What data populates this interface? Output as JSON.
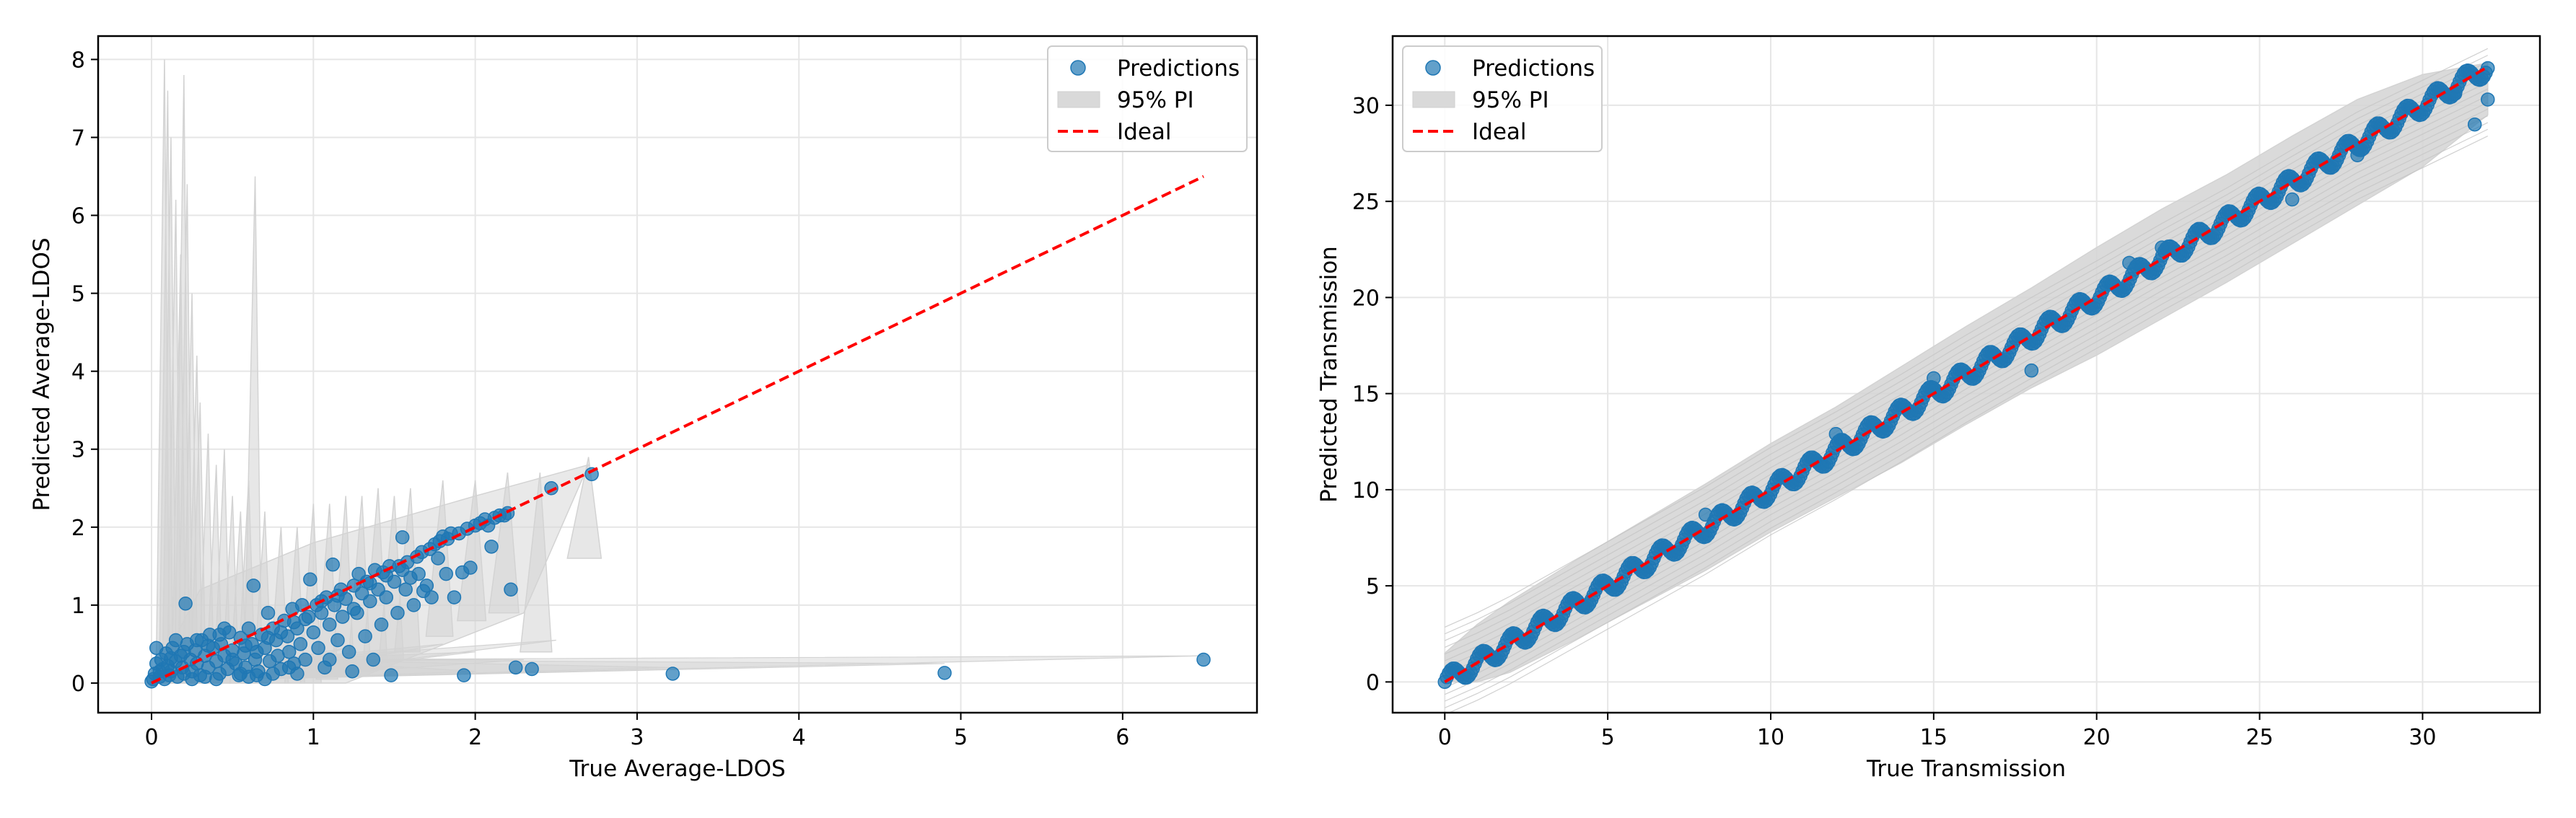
{
  "chart_data": [
    {
      "type": "scatter",
      "xlabel": "True Average-LDOS",
      "ylabel": "Predicted Average-LDOS",
      "xlim": [
        -0.33,
        6.83
      ],
      "ylim": [
        -0.38,
        8.3
      ],
      "xticks": [
        0,
        1,
        2,
        3,
        4,
        5,
        6
      ],
      "yticks": [
        0,
        1,
        2,
        3,
        4,
        5,
        6,
        7,
        8
      ],
      "grid": true,
      "legend": {
        "position": "top-right",
        "entries": [
          "Predictions",
          "95% PI",
          "Ideal"
        ]
      },
      "colors": {
        "points": "#1f77b4",
        "interval": "#d3d3d3",
        "ideal": "#ff0000"
      },
      "ideal_line": {
        "from": [
          0,
          0
        ],
        "to": [
          6.5,
          6.5
        ]
      },
      "points": [
        [
          0.0,
          0.02
        ],
        [
          0.01,
          0.05
        ],
        [
          0.02,
          0.12
        ],
        [
          0.03,
          0.25
        ],
        [
          0.03,
          0.45
        ],
        [
          0.05,
          0.08
        ],
        [
          0.06,
          0.3
        ],
        [
          0.07,
          0.18
        ],
        [
          0.08,
          0.05
        ],
        [
          0.09,
          0.38
        ],
        [
          0.1,
          0.22
        ],
        [
          0.11,
          0.1
        ],
        [
          0.12,
          0.15
        ],
        [
          0.13,
          0.45
        ],
        [
          0.15,
          0.28
        ],
        [
          0.16,
          0.08
        ],
        [
          0.18,
          0.35
        ],
        [
          0.19,
          0.2
        ],
        [
          0.2,
          0.12
        ],
        [
          0.21,
          1.02
        ],
        [
          0.22,
          0.5
        ],
        [
          0.24,
          0.3
        ],
        [
          0.25,
          0.15
        ],
        [
          0.27,
          0.42
        ],
        [
          0.28,
          0.25
        ],
        [
          0.3,
          0.1
        ],
        [
          0.31,
          0.55
        ],
        [
          0.33,
          0.35
        ],
        [
          0.35,
          0.2
        ],
        [
          0.36,
          0.62
        ],
        [
          0.38,
          0.45
        ],
        [
          0.4,
          0.28
        ],
        [
          0.42,
          0.12
        ],
        [
          0.43,
          0.5
        ],
        [
          0.45,
          0.35
        ],
        [
          0.47,
          0.18
        ],
        [
          0.48,
          0.65
        ],
        [
          0.5,
          0.42
        ],
        [
          0.52,
          0.25
        ],
        [
          0.54,
          0.1
        ],
        [
          0.55,
          0.58
        ],
        [
          0.57,
          0.38
        ],
        [
          0.58,
          0.2
        ],
        [
          0.6,
          0.7
        ],
        [
          0.62,
          0.5
        ],
        [
          0.63,
          1.25
        ],
        [
          0.64,
          0.3
        ],
        [
          0.66,
          0.15
        ],
        [
          0.68,
          0.62
        ],
        [
          0.7,
          0.45
        ],
        [
          0.72,
          0.9
        ],
        [
          0.73,
          0.28
        ],
        [
          0.75,
          0.7
        ],
        [
          0.77,
          0.55
        ],
        [
          0.78,
          0.35
        ],
        [
          0.8,
          0.18
        ],
        [
          0.82,
          0.8
        ],
        [
          0.84,
          0.6
        ],
        [
          0.85,
          0.4
        ],
        [
          0.87,
          0.95
        ],
        [
          0.88,
          0.25
        ],
        [
          0.9,
          0.7
        ],
        [
          0.92,
          0.5
        ],
        [
          0.93,
          1.0
        ],
        [
          0.95,
          0.3
        ],
        [
          0.97,
          0.85
        ],
        [
          0.98,
          1.33
        ],
        [
          1.0,
          0.65
        ],
        [
          1.02,
          1.0
        ],
        [
          1.03,
          0.45
        ],
        [
          1.05,
          0.9
        ],
        [
          1.07,
          0.2
        ],
        [
          1.08,
          1.1
        ],
        [
          1.1,
          0.75
        ],
        [
          1.12,
          1.52
        ],
        [
          1.13,
          1.0
        ],
        [
          1.15,
          0.55
        ],
        [
          1.17,
          1.2
        ],
        [
          1.18,
          0.85
        ],
        [
          1.2,
          1.08
        ],
        [
          1.22,
          0.4
        ],
        [
          1.24,
          0.15
        ],
        [
          1.25,
          1.25
        ],
        [
          1.27,
          0.9
        ],
        [
          1.28,
          1.4
        ],
        [
          1.3,
          1.15
        ],
        [
          1.32,
          0.6
        ],
        [
          1.33,
          1.3
        ],
        [
          1.35,
          1.05
        ],
        [
          1.37,
          0.3
        ],
        [
          1.38,
          1.45
        ],
        [
          1.4,
          1.2
        ],
        [
          1.42,
          0.75
        ],
        [
          1.43,
          1.42
        ],
        [
          1.45,
          1.1
        ],
        [
          1.47,
          1.5
        ],
        [
          1.48,
          0.1
        ],
        [
          1.5,
          1.3
        ],
        [
          1.52,
          0.9
        ],
        [
          1.53,
          1.5
        ],
        [
          1.55,
          1.87
        ],
        [
          1.57,
          1.2
        ],
        [
          1.58,
          1.55
        ],
        [
          1.6,
          1.35
        ],
        [
          1.62,
          1.0
        ],
        [
          1.64,
          1.62
        ],
        [
          1.65,
          1.4
        ],
        [
          1.67,
          1.68
        ],
        [
          1.68,
          1.18
        ],
        [
          1.7,
          1.25
        ],
        [
          1.72,
          1.72
        ],
        [
          1.73,
          1.1
        ],
        [
          1.75,
          1.78
        ],
        [
          1.77,
          1.6
        ],
        [
          1.78,
          1.82
        ],
        [
          1.8,
          1.88
        ],
        [
          1.82,
          1.4
        ],
        [
          1.83,
          1.85
        ],
        [
          1.85,
          1.92
        ],
        [
          1.87,
          1.1
        ],
        [
          1.9,
          1.92
        ],
        [
          1.92,
          1.42
        ],
        [
          1.93,
          0.1
        ],
        [
          1.95,
          1.98
        ],
        [
          1.97,
          1.48
        ],
        [
          2.0,
          2.02
        ],
        [
          2.03,
          2.05
        ],
        [
          2.06,
          2.1
        ],
        [
          2.08,
          2.02
        ],
        [
          2.1,
          1.75
        ],
        [
          2.12,
          2.12
        ],
        [
          2.15,
          2.15
        ],
        [
          2.18,
          2.15
        ],
        [
          2.2,
          2.18
        ],
        [
          2.22,
          1.2
        ],
        [
          2.25,
          0.2
        ],
        [
          2.35,
          0.18
        ],
        [
          2.47,
          2.5
        ],
        [
          2.72,
          2.68
        ],
        [
          3.22,
          0.12
        ],
        [
          4.9,
          0.13
        ],
        [
          6.5,
          0.3
        ],
        [
          0.05,
          0.15
        ],
        [
          0.12,
          0.32
        ],
        [
          0.2,
          0.4
        ],
        [
          0.28,
          0.55
        ],
        [
          0.35,
          0.48
        ],
        [
          0.42,
          0.62
        ],
        [
          0.5,
          0.3
        ],
        [
          0.58,
          0.48
        ],
        [
          0.65,
          0.4
        ],
        [
          0.72,
          0.58
        ],
        [
          0.8,
          0.65
        ],
        [
          0.88,
          0.78
        ],
        [
          0.95,
          0.82
        ],
        [
          1.05,
          1.05
        ],
        [
          1.15,
          1.12
        ],
        [
          1.25,
          0.95
        ],
        [
          1.35,
          1.28
        ],
        [
          1.45,
          1.38
        ],
        [
          1.55,
          1.45
        ],
        [
          0.4,
          0.05
        ],
        [
          0.6,
          0.08
        ],
        [
          0.7,
          0.05
        ],
        [
          0.9,
          0.12
        ],
        [
          1.1,
          0.3
        ],
        [
          0.15,
          0.55
        ],
        [
          0.25,
          0.05
        ],
        [
          0.33,
          0.08
        ],
        [
          0.45,
          0.7
        ],
        [
          0.55,
          0.12
        ],
        [
          0.65,
          0.1
        ],
        [
          0.75,
          0.12
        ],
        [
          0.85,
          0.2
        ]
      ],
      "intervals": [
        [
          0.08,
          0.0,
          8.0
        ],
        [
          0.1,
          0.0,
          7.6
        ],
        [
          0.12,
          0.0,
          7.0
        ],
        [
          0.15,
          0.0,
          6.2
        ],
        [
          0.18,
          0.0,
          5.5
        ],
        [
          0.2,
          0.0,
          7.8
        ],
        [
          0.22,
          0.0,
          6.4
        ],
        [
          0.25,
          0.0,
          5.0
        ],
        [
          0.28,
          0.0,
          4.2
        ],
        [
          0.3,
          0.0,
          3.6
        ],
        [
          0.35,
          0.0,
          3.2
        ],
        [
          0.4,
          0.0,
          2.8
        ],
        [
          0.45,
          0.0,
          3.0
        ],
        [
          0.5,
          0.0,
          2.4
        ],
        [
          0.55,
          0.0,
          2.2
        ],
        [
          0.6,
          0.0,
          2.6
        ],
        [
          0.64,
          0.0,
          6.5
        ],
        [
          0.7,
          0.0,
          2.2
        ],
        [
          0.8,
          0.0,
          2.0
        ],
        [
          0.9,
          0.0,
          2.0
        ],
        [
          1.0,
          0.0,
          2.3
        ],
        [
          1.1,
          0.05,
          2.3
        ],
        [
          1.2,
          0.1,
          2.4
        ],
        [
          1.3,
          0.15,
          2.4
        ],
        [
          1.4,
          0.3,
          2.5
        ],
        [
          1.5,
          0.3,
          2.4
        ],
        [
          1.6,
          0.4,
          2.5
        ],
        [
          1.8,
          0.6,
          2.6
        ],
        [
          2.0,
          0.8,
          2.6
        ],
        [
          2.2,
          0.9,
          2.7
        ],
        [
          2.4,
          0.4,
          2.7
        ],
        [
          2.7,
          1.6,
          2.9
        ]
      ],
      "spikes": [
        [
          0.5,
          0.1
        ],
        [
          1.0,
          0.25
        ],
        [
          1.5,
          0.3
        ],
        [
          2.0,
          0.4
        ],
        [
          2.5,
          0.55
        ],
        [
          2.0,
          0.15
        ],
        [
          3.2,
          0.2
        ],
        [
          4.9,
          0.25
        ],
        [
          6.5,
          0.35
        ],
        [
          2.3,
          0.3
        ],
        [
          1.8,
          0.5
        ],
        [
          1.2,
          0.45
        ]
      ]
    },
    {
      "type": "scatter",
      "xlabel": "True Transmission",
      "ylabel": "Predicted Transmission",
      "xlim": [
        -1.6,
        33.6
      ],
      "ylim": [
        -1.6,
        33.6
      ],
      "xticks": [
        0,
        5,
        10,
        15,
        20,
        25,
        30
      ],
      "yticks": [
        0,
        5,
        10,
        15,
        20,
        25,
        30
      ],
      "grid": true,
      "legend": {
        "position": "top-left",
        "entries": [
          "Predictions",
          "95% PI",
          "Ideal"
        ]
      },
      "colors": {
        "points": "#1f77b4",
        "interval": "#d3d3d3",
        "ideal": "#ff0000"
      },
      "ideal_line": {
        "from": [
          0,
          0
        ],
        "to": [
          32,
          32
        ]
      },
      "band": {
        "x": [
          0,
          1,
          2,
          4,
          6,
          8,
          10,
          12,
          14,
          16,
          18,
          20,
          22,
          24,
          26,
          28,
          30,
          32
        ],
        "upper": [
          1.5,
          3.0,
          4.2,
          6.3,
          8.3,
          10.3,
          12.4,
          14.3,
          16.4,
          18.5,
          20.5,
          22.6,
          24.6,
          26.4,
          28.4,
          30.3,
          31.6,
          32.2
        ],
        "lower": [
          0,
          0,
          0.5,
          2.2,
          4.0,
          5.8,
          7.8,
          9.6,
          11.4,
          13.4,
          15.3,
          17.0,
          18.9,
          20.8,
          22.8,
          24.8,
          26.8,
          29.5
        ]
      },
      "outliers": [
        [
          31.6,
          29.0
        ],
        [
          32.0,
          30.3
        ],
        [
          21.0,
          21.8
        ],
        [
          18.0,
          16.2
        ],
        [
          12.0,
          12.9
        ],
        [
          26.0,
          25.1
        ],
        [
          28.0,
          27.4
        ],
        [
          22.0,
          22.6
        ],
        [
          8.0,
          8.7
        ],
        [
          15.0,
          15.8
        ],
        [
          31.0,
          30.6
        ]
      ]
    }
  ]
}
